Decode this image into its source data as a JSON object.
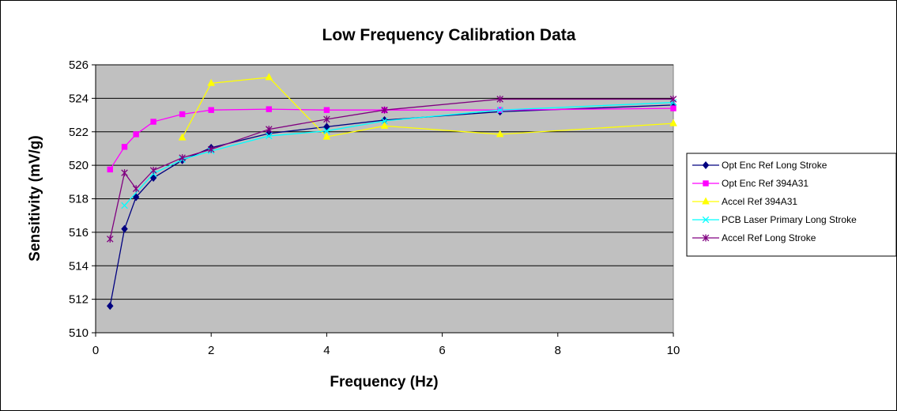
{
  "chart_data": {
    "type": "line",
    "title": "Low Frequency Calibration Data",
    "xlabel": "Frequency (Hz)",
    "ylabel": "Sensitivity (mV/g)",
    "xlim": [
      0,
      10
    ],
    "ylim": [
      510,
      526
    ],
    "xticks": [
      0,
      2,
      4,
      6,
      8,
      10
    ],
    "yticks": [
      510,
      512,
      514,
      516,
      518,
      520,
      522,
      524,
      526
    ],
    "grid": "horizontal",
    "legend_position": "right",
    "plot_background": "#C0C0C0",
    "series": [
      {
        "name": "Opt Enc Ref Long Stroke",
        "color": "#000080",
        "marker": "diamond",
        "points": [
          [
            0.25,
            511.6
          ],
          [
            0.5,
            516.2
          ],
          [
            0.7,
            518.1
          ],
          [
            1,
            519.25
          ],
          [
            1.5,
            520.3
          ],
          [
            2,
            521.05
          ],
          [
            3,
            521.9
          ],
          [
            4,
            522.3
          ],
          [
            5,
            522.7
          ],
          [
            7,
            523.2
          ],
          [
            10,
            523.6
          ]
        ]
      },
      {
        "name": "Opt Enc Ref 394A31",
        "color": "#FF00FF",
        "marker": "square",
        "points": [
          [
            0.25,
            519.75
          ],
          [
            0.5,
            521.1
          ],
          [
            0.7,
            521.85
          ],
          [
            1,
            522.6
          ],
          [
            1.5,
            523.05
          ],
          [
            2,
            523.3
          ],
          [
            3,
            523.35
          ],
          [
            4,
            523.3
          ],
          [
            5,
            523.3
          ],
          [
            7,
            523.3
          ],
          [
            10,
            523.4
          ]
        ]
      },
      {
        "name": "Accel Ref 394A31",
        "color": "#FFFF00",
        "marker": "triangle",
        "points": [
          [
            1.5,
            521.65
          ],
          [
            2,
            524.9
          ],
          [
            3,
            525.25
          ],
          [
            4,
            521.7
          ],
          [
            5,
            522.35
          ],
          [
            7,
            521.85
          ],
          [
            10,
            522.5
          ]
        ]
      },
      {
        "name": "PCB Laser Primary Long Stroke",
        "color": "#00FFFF",
        "marker": "x",
        "points": [
          [
            0.5,
            517.6
          ],
          [
            1,
            519.5
          ],
          [
            1.5,
            520.35
          ],
          [
            2,
            520.85
          ],
          [
            3,
            521.75
          ],
          [
            4,
            522.05
          ],
          [
            5,
            522.65
          ],
          [
            7,
            523.3
          ],
          [
            10,
            523.75
          ]
        ]
      },
      {
        "name": "Accel Ref Long Stroke",
        "color": "#800080",
        "marker": "star",
        "points": [
          [
            0.25,
            515.6
          ],
          [
            0.5,
            519.55
          ],
          [
            0.7,
            518.6
          ],
          [
            1,
            519.7
          ],
          [
            1.5,
            520.45
          ],
          [
            2,
            520.95
          ],
          [
            3,
            522.15
          ],
          [
            4,
            522.75
          ],
          [
            5,
            523.3
          ],
          [
            7,
            523.95
          ],
          [
            10,
            523.95
          ]
        ]
      }
    ]
  }
}
